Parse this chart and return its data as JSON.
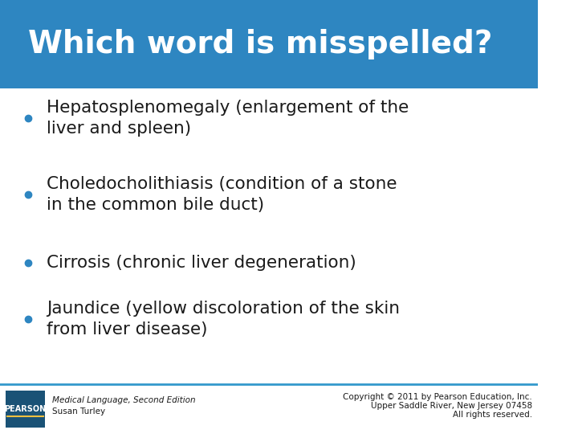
{
  "title": "Which word is misspelled?",
  "title_bg_color": "#2E86C1",
  "title_text_color": "#FFFFFF",
  "bg_color": "#F0F4F8",
  "body_bg_color": "#FFFFFF",
  "bullets": [
    "Hepatosplenomegaly (enlargement of the\nliver and spleen)",
    "Choledocholithiasis (condition of a stone\nin the common bile duct)",
    "Cirrosis (chronic liver degeneration)",
    "Jaundice (yellow discoloration of the skin\nfrom liver disease)"
  ],
  "bullet_color": "#2E86C1",
  "text_color": "#1A1A1A",
  "footer_left_line1": "Medical Language, Second Edition",
  "footer_left_line2": "Susan Turley",
  "footer_right_line1": "Copyright © 2011 by Pearson Education, Inc.",
  "footer_right_line2": "Upper Saddle River, New Jersey 07458",
  "footer_right_line3": "All rights reserved.",
  "pearson_box_color": "#1A5276",
  "pearson_text": "PEARSON",
  "title_fontsize": 28,
  "bullet_fontsize": 15.5,
  "footer_fontsize": 7.5
}
